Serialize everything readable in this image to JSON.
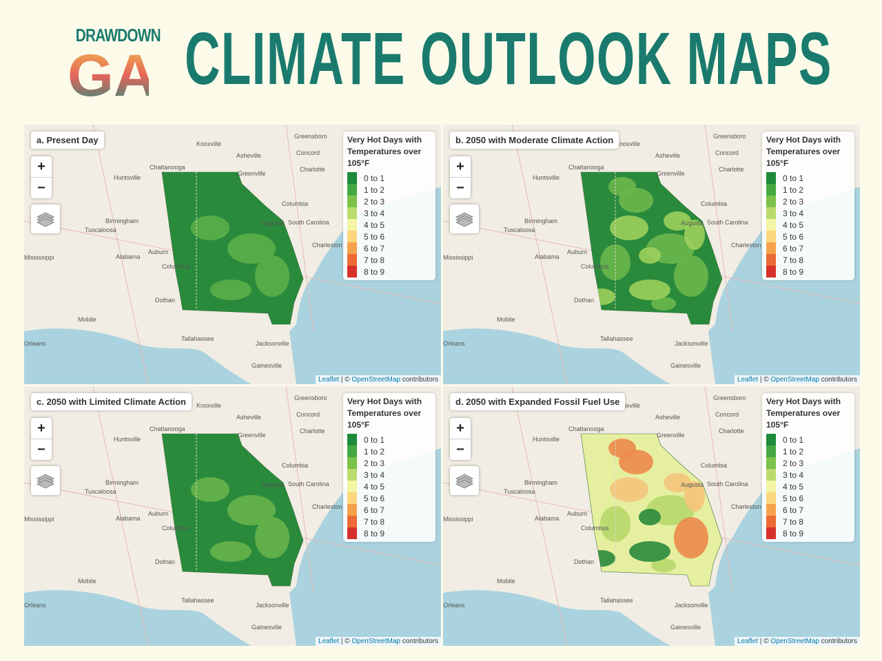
{
  "header": {
    "logo": [
      "DRAWDOWN",
      "GA"
    ],
    "title": "CLIMATE OUTLOOK MAPS"
  },
  "zoom_controls": [
    "+",
    "−"
  ],
  "legend": {
    "title": "Very Hot Days with Temperatures over 105°F",
    "items": [
      {
        "label": "0 to 1",
        "color": "#1e8a3a"
      },
      {
        "label": "1 to 2",
        "color": "#45a842"
      },
      {
        "label": "2 to 3",
        "color": "#7cc24a"
      },
      {
        "label": "3 to 4",
        "color": "#b9dc6c"
      },
      {
        "label": "4 to 5",
        "color": "#f4f4a4"
      },
      {
        "label": "5 to 6",
        "color": "#fbd67c"
      },
      {
        "label": "6 to 7",
        "color": "#f6a24c"
      },
      {
        "label": "7 to 8",
        "color": "#ec6a35"
      },
      {
        "label": "8 to 9",
        "color": "#d6302a"
      }
    ]
  },
  "attribution": {
    "leaflet": "Leaflet",
    "osm": "OpenStreetMap",
    "rest": "contributors"
  },
  "map_labels": [
    "Greensboro",
    "Knoxville",
    "Asheville",
    "Concord",
    "Chattanooga",
    "Greenville",
    "Charlotte",
    "Huntsville",
    "Columbia",
    "Birmingham",
    "Augusta",
    "Tuscaloosa",
    "South Carolina",
    "Charleston",
    "Auburn",
    "Columbus",
    "Mississippi",
    "Alabama",
    "Dothan",
    "Mobile",
    "Tallahassee",
    "Jacksonville",
    "Orleans",
    "Gainesville"
  ],
  "panels": [
    {
      "title": "a. Present Day",
      "colors": [
        "#2a8a3c",
        "#5aae48"
      ]
    },
    {
      "title": "b. 2050 with Moderate Climate Action",
      "colors": [
        "#2a8a3c",
        "#6ab64b",
        "#9ccf5c"
      ]
    },
    {
      "title": "c. 2050 with Limited Climate Action",
      "colors": [
        "#2a8a3c",
        "#66b34a"
      ]
    },
    {
      "title": "d. 2050 with Expanded Fossil Fuel Use",
      "colors": [
        "#e6efa0",
        "#b6d86c",
        "#f4c47c",
        "#ec8a4a",
        "#2a8a3c"
      ]
    }
  ]
}
